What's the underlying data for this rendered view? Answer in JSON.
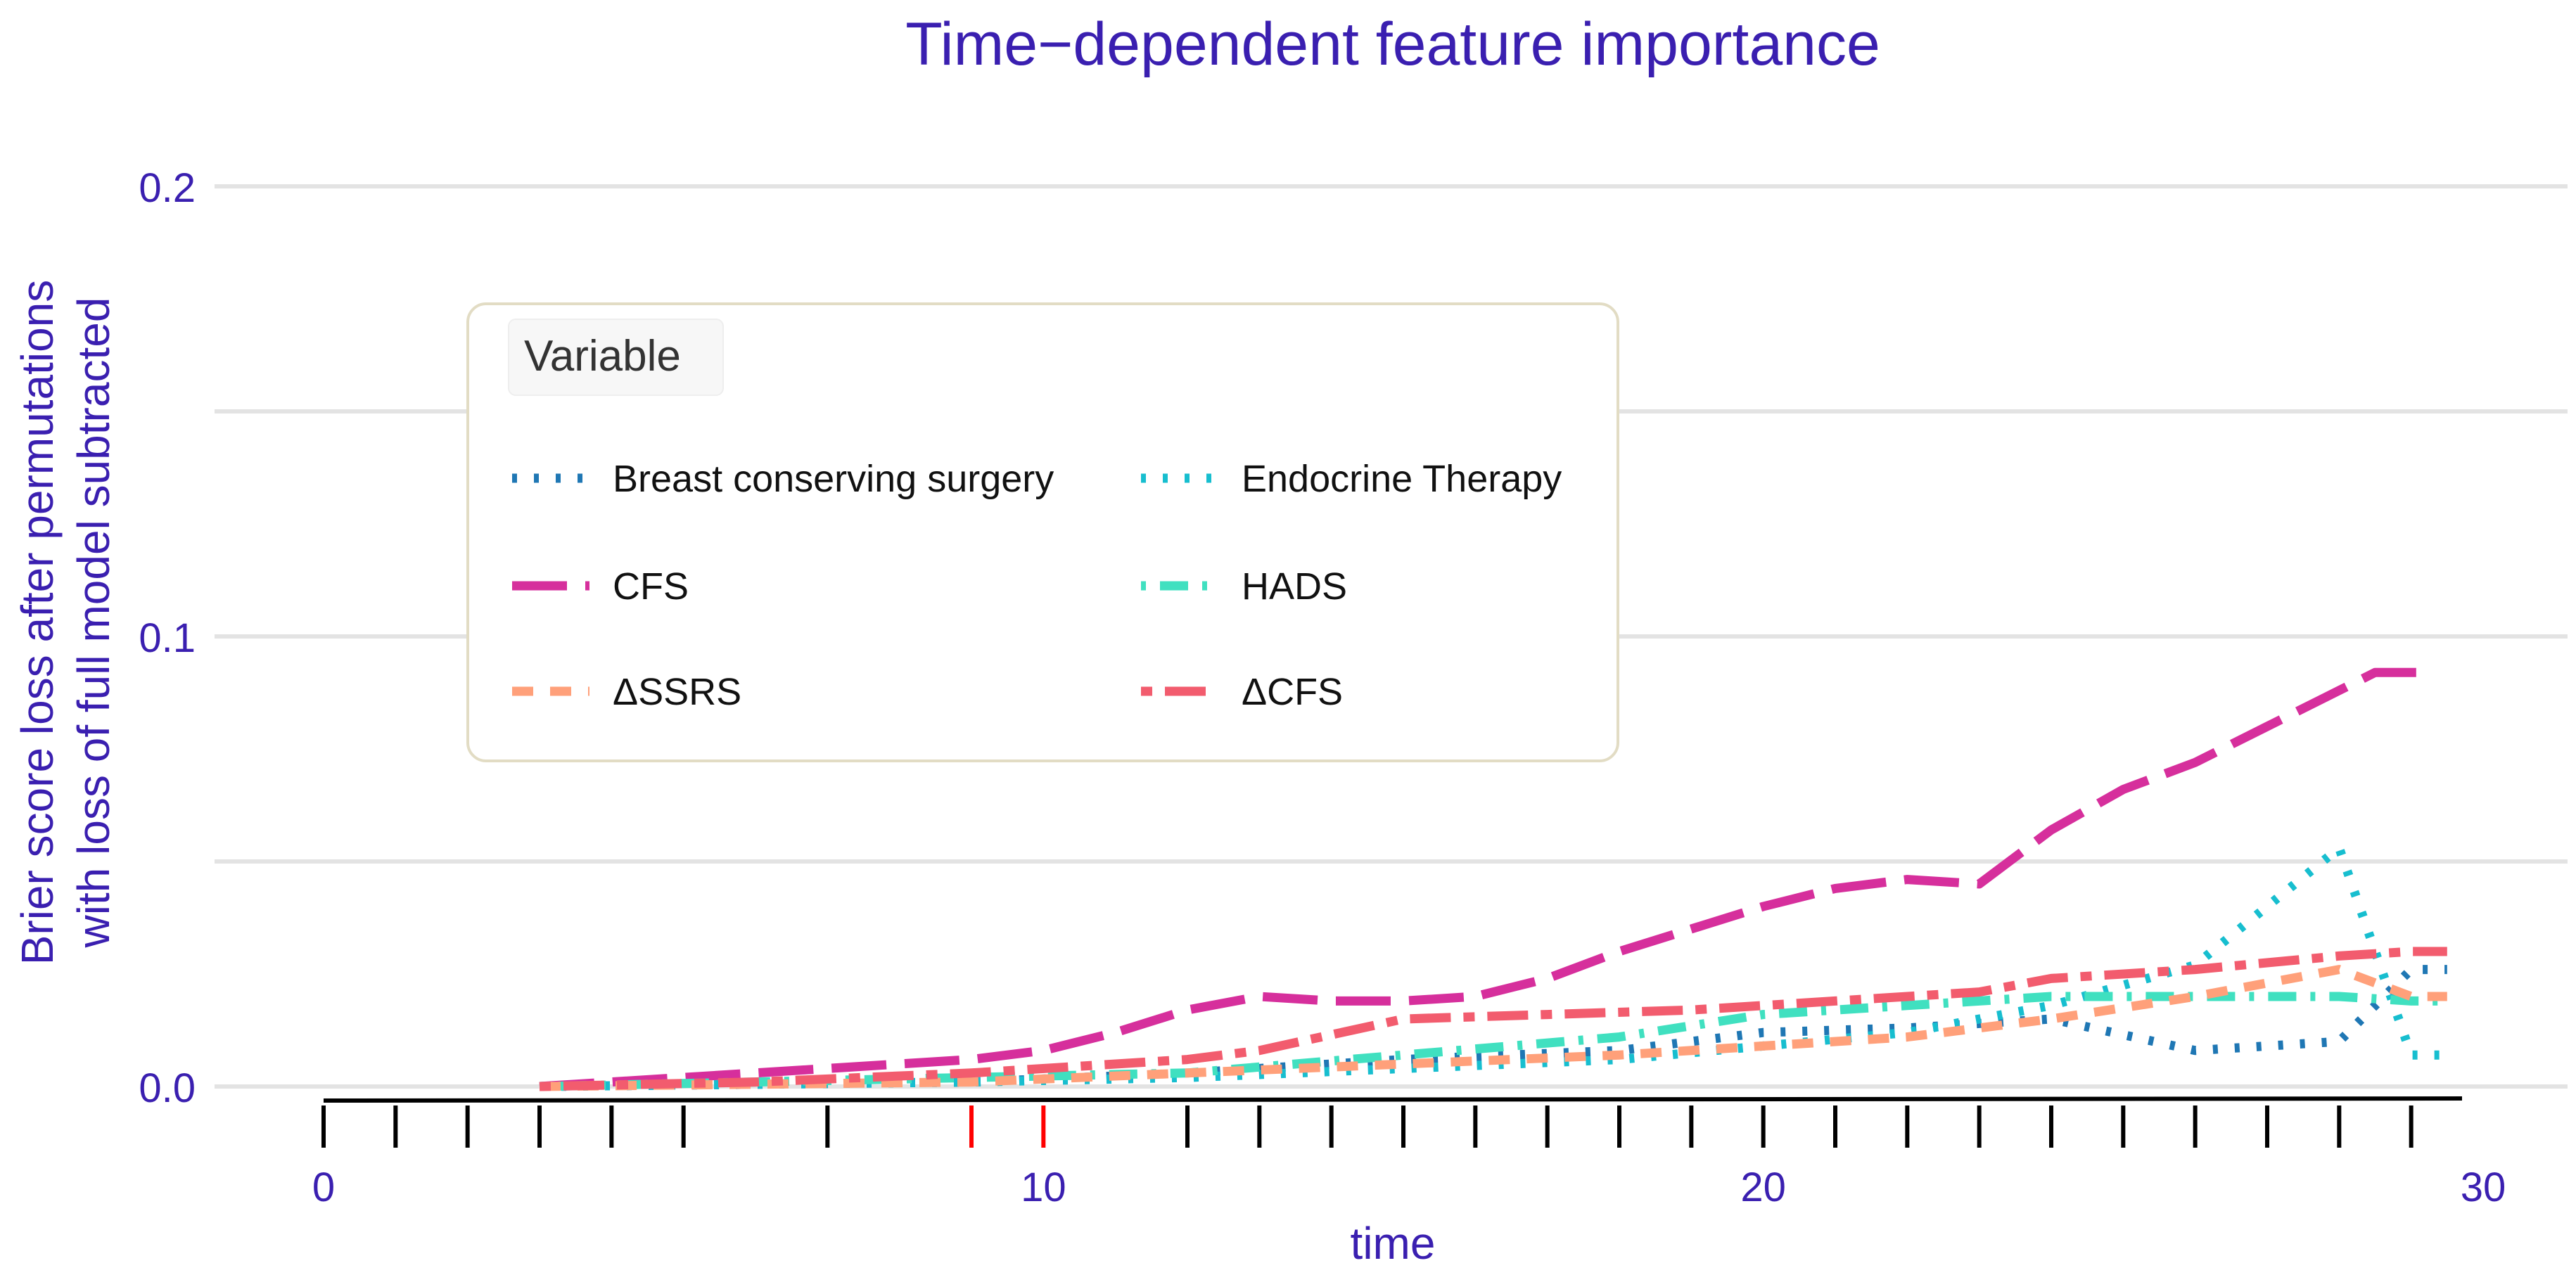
{
  "chart_data": {
    "type": "line",
    "title": "Time−dependent feature importance",
    "xlabel": "time",
    "ylabel_lines": [
      "Brier score loss after permutations",
      "with loss of full model subtracted"
    ],
    "xlim": [
      0,
      30
    ],
    "ylim": [
      -0.003,
      0.205
    ],
    "x_ticks": [
      0,
      10,
      20,
      30
    ],
    "x_tick_labels": [
      "0",
      "10",
      "20",
      "30"
    ],
    "y_ticks": [
      0.0,
      0.1,
      0.2
    ],
    "y_tick_labels": [
      "0.0",
      "0.1",
      "0.2"
    ],
    "y_gridlines": [
      0.0,
      0.05,
      0.1,
      0.15,
      0.2
    ],
    "event_times": [
      0,
      1,
      2,
      3,
      4,
      5,
      7,
      9,
      10,
      12,
      13,
      14,
      15,
      16,
      17,
      18,
      19,
      20,
      21,
      22,
      23,
      24,
      25,
      26,
      27,
      28,
      29
    ],
    "highlighted_event_times": [
      9,
      10
    ],
    "legend": {
      "title": "Variable",
      "position": "top-left"
    },
    "series": [
      {
        "name": "Breast conserving surgery",
        "color": "#1f77b4",
        "dash": "dotted",
        "x": [
          3,
          6,
          9,
          12,
          15,
          18,
          20,
          22,
          24,
          26,
          28,
          29,
          29.5
        ],
        "y": [
          0.0,
          0.0005,
          0.001,
          0.003,
          0.006,
          0.008,
          0.012,
          0.013,
          0.015,
          0.008,
          0.01,
          0.026,
          0.026
        ]
      },
      {
        "name": "Endocrine Therapy",
        "color": "#17becf",
        "dash": "dotted",
        "x": [
          3,
          6,
          9,
          12,
          15,
          18,
          20,
          22,
          24,
          26,
          28,
          29,
          29.5
        ],
        "y": [
          0.0,
          0.0005,
          0.001,
          0.002,
          0.004,
          0.006,
          0.009,
          0.012,
          0.018,
          0.027,
          0.053,
          0.007,
          0.007
        ]
      },
      {
        "name": "CFS",
        "color": "#d62f9c",
        "dash": "longdash",
        "x": [
          3,
          5,
          7,
          9,
          10,
          11,
          12,
          13,
          14,
          15,
          16,
          17,
          18,
          19,
          20,
          21,
          22,
          23,
          24,
          25,
          26,
          27,
          28,
          28.5,
          29.3
        ],
        "y": [
          0.0,
          0.002,
          0.004,
          0.006,
          0.008,
          0.012,
          0.017,
          0.02,
          0.019,
          0.019,
          0.02,
          0.024,
          0.03,
          0.035,
          0.04,
          0.044,
          0.046,
          0.045,
          0.057,
          0.066,
          0.072,
          0.08,
          0.088,
          0.092,
          0.092
        ]
      },
      {
        "name": "HADS",
        "color": "#40e0c0",
        "dash": "dotdash",
        "x": [
          3,
          6,
          9,
          12,
          15,
          18,
          20,
          22,
          24,
          26,
          28,
          29,
          29.5
        ],
        "y": [
          0.0,
          0.001,
          0.002,
          0.003,
          0.007,
          0.011,
          0.016,
          0.018,
          0.02,
          0.02,
          0.02,
          0.019,
          0.019
        ]
      },
      {
        "name": "ΔSSRS",
        "color": "#ffa07a",
        "dash": "dashed",
        "x": [
          3,
          6,
          9,
          12,
          15,
          18,
          20,
          22,
          24,
          26,
          28,
          29,
          29.5
        ],
        "y": [
          0.0,
          0.0005,
          0.001,
          0.003,
          0.005,
          0.007,
          0.009,
          0.011,
          0.015,
          0.02,
          0.026,
          0.02,
          0.02
        ]
      },
      {
        "name": "ΔCFS",
        "color": "#f25c6e",
        "dash": "twodash",
        "x": [
          3,
          6,
          9,
          12,
          13,
          15,
          17,
          19,
          21,
          23,
          24,
          26,
          28,
          29,
          29.5
        ],
        "y": [
          0.0,
          0.001,
          0.003,
          0.006,
          0.008,
          0.015,
          0.016,
          0.017,
          0.019,
          0.021,
          0.024,
          0.026,
          0.029,
          0.03,
          0.03
        ]
      }
    ]
  },
  "colors": {
    "title": "#3a1fb0",
    "axis_text": "#3a1fb0",
    "gridline": "#e3e3e3",
    "legend_border": "#e2dcc4",
    "legend_title_bg": "#f7f7f7",
    "rug": "#000000",
    "rug_highlight": "#ff0000"
  }
}
